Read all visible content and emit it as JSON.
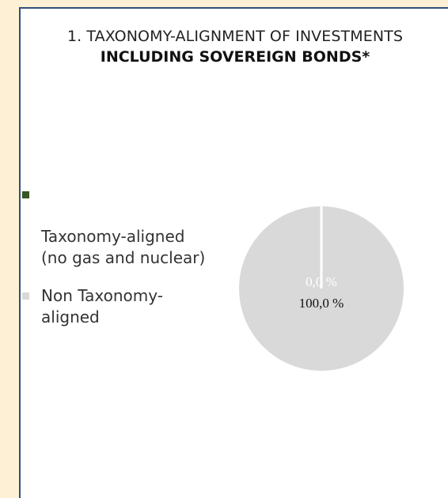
{
  "title_line_1": "1. TAXONOMY-ALIGNMENT OF INVESTMENTS",
  "title_line_2": "INCLUDING SOVEREIGN BONDS*",
  "chart_data": {
    "type": "pie",
    "title": "1. TAXONOMY-ALIGNMENT OF INVESTMENTS INCLUDING SOVEREIGN BONDS*",
    "legend_position": "left",
    "series": [
      {
        "name": "Taxonomy-aligned (no gas and nuclear)",
        "value": 0.0,
        "label": "0,0 %",
        "color": "#375623"
      },
      {
        "name": "Non Taxonomy-aligned",
        "value": 100.0,
        "label": "100,0 %",
        "color": "#d9d9d9"
      }
    ]
  },
  "legend": {
    "item_1_line_1": "Taxonomy-aligned",
    "item_1_line_2": "(no gas and nuclear)",
    "item_2_line_1": "Non Taxonomy-",
    "item_2_line_2": "aligned"
  }
}
